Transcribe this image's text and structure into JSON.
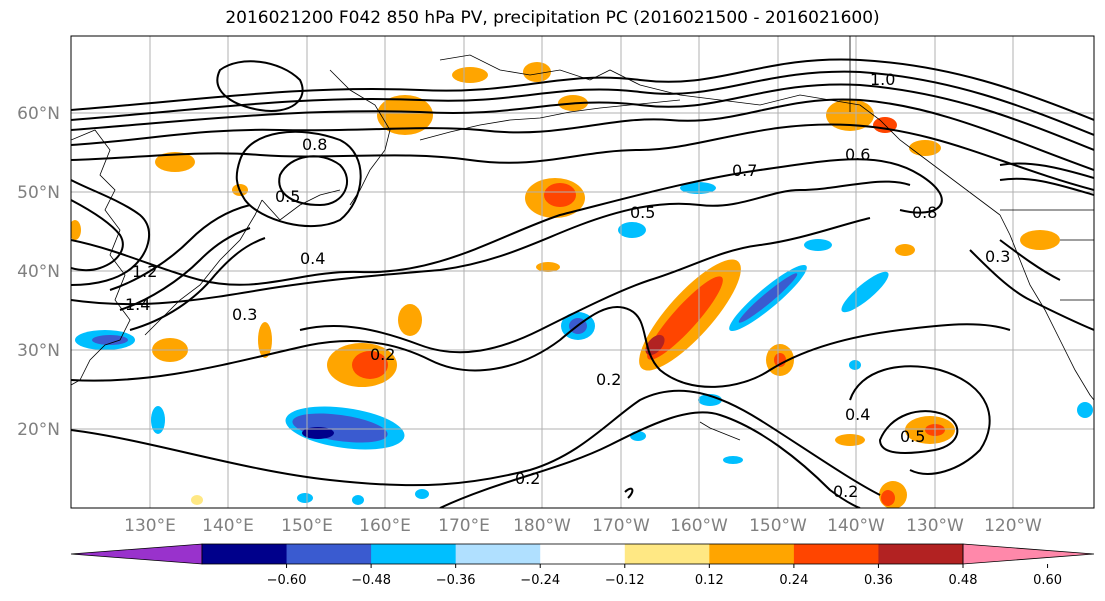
{
  "title": "2016021200 F042 850 hPa PV, precipitation PC (2016021500 - 2016021600)",
  "lat_labels": [
    "60°N",
    "50°N",
    "40°N",
    "30°N",
    "20°N"
  ],
  "lon_labels": [
    "130°E",
    "140°E",
    "150°E",
    "160°E",
    "170°E",
    "180°W",
    "170°W",
    "160°W",
    "150°W",
    "140°W",
    "130°W",
    "120°W"
  ],
  "colorbar": {
    "colors": [
      "#9932CC",
      "#00008B",
      "#3A5BD0",
      "#00BFFF",
      "#B0E0FF",
      "#FFFFFF",
      "#FFE884",
      "#FFA500",
      "#FF4500",
      "#B22222",
      "#FF88AA"
    ],
    "ticks": [
      "−0.60",
      "−0.48",
      "−0.36",
      "−0.24",
      "−0.12",
      "0.12",
      "0.24",
      "0.36",
      "0.48",
      "0.60"
    ]
  },
  "contour_labels": [
    "1.2",
    "1.4",
    "0.8",
    "0.5",
    "0.4",
    "0.3",
    "0.2",
    "0.7",
    "0.6",
    "0.5",
    "1.0",
    "0.8",
    "0.3",
    "0.2",
    "0.4",
    "0.2",
    "0.2",
    "0.5"
  ]
}
